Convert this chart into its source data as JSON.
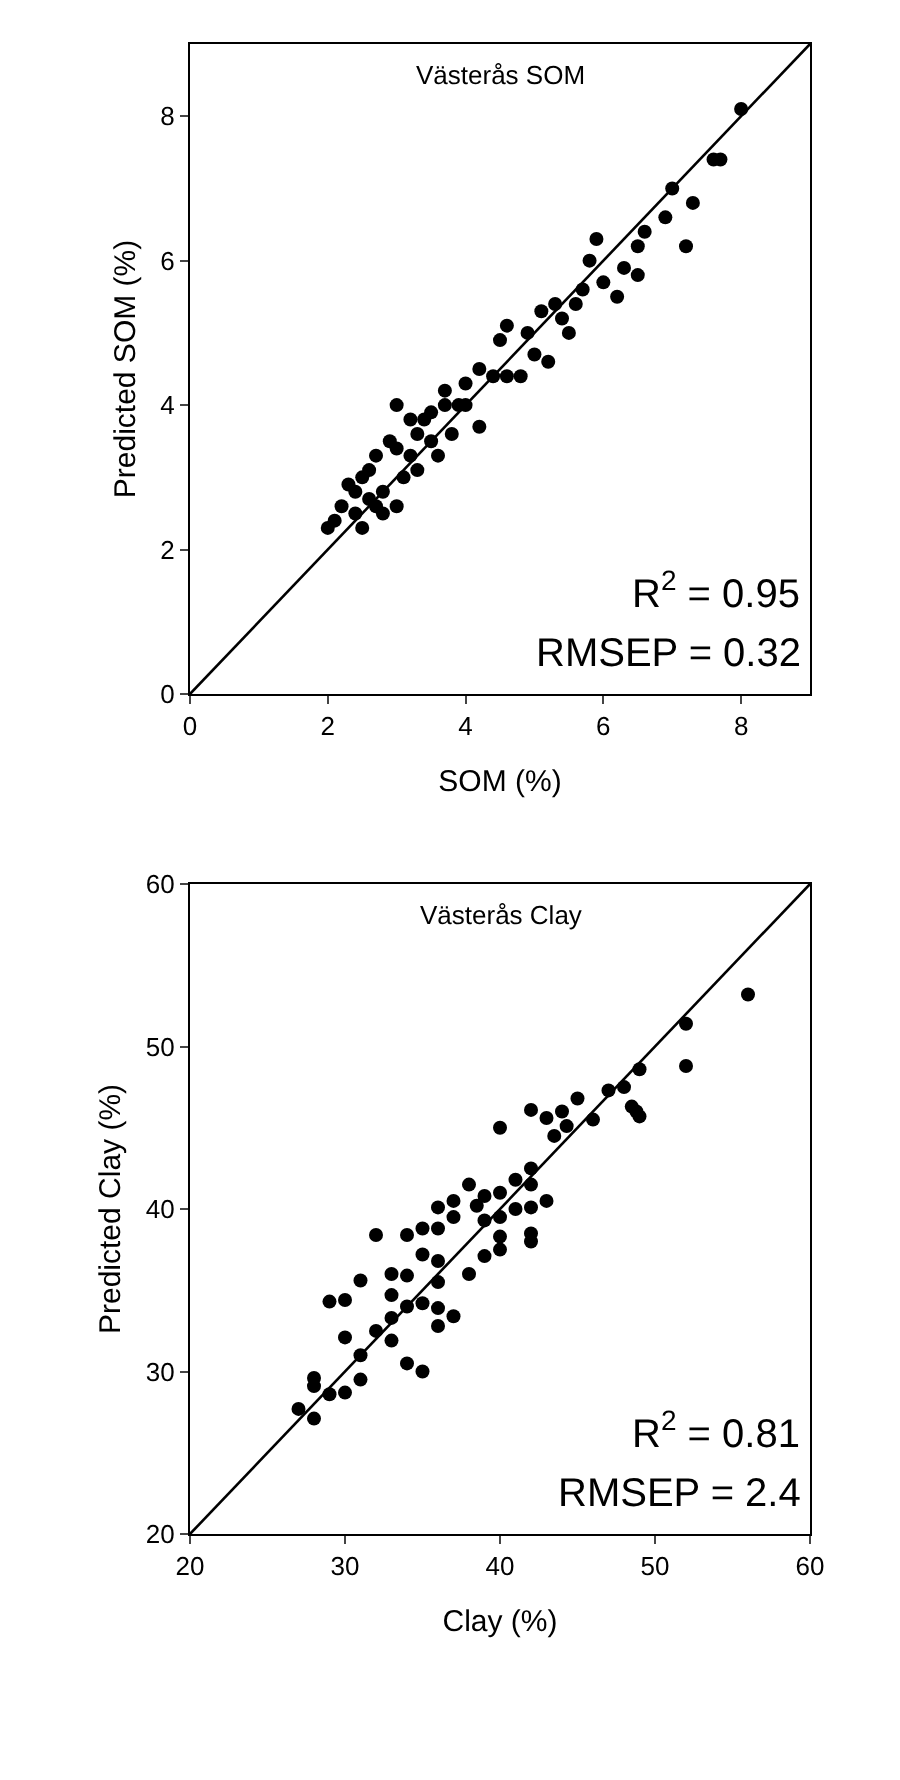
{
  "chart_data": [
    {
      "type": "scatter",
      "xlabel": "SOM (%)",
      "ylabel": "Predicted SOM (%)",
      "xlim": [
        0,
        9
      ],
      "ylim": [
        0,
        9
      ],
      "xticks": [
        0,
        2,
        4,
        6,
        8
      ],
      "yticks": [
        0,
        2,
        4,
        6,
        8
      ],
      "grid": false,
      "annotations": [
        "Västerås SOM",
        "R$^{2}$ = 0.95",
        "RMSEP = 0.32"
      ],
      "series": [
        {
          "color": "#000000",
          "x": [
            8.0,
            7.7,
            7.6,
            7.0,
            7.3,
            6.9,
            7.2,
            6.6,
            6.5,
            6.3,
            6.5,
            5.9,
            5.8,
            5.7,
            6.0,
            6.2,
            5.6,
            5.3,
            5.5,
            5.1,
            4.9,
            5.0,
            4.6,
            4.5,
            5.2,
            4.2,
            4.4,
            4.0,
            4.6,
            3.7,
            3.9,
            3.7,
            3.8,
            4.2,
            3.5,
            3.4,
            3.5,
            3.3,
            3.0,
            3.0,
            2.9,
            2.7,
            3.2,
            2.6,
            2.5,
            2.8,
            3.1,
            2.6,
            2.3,
            2.4,
            2.2,
            2.5,
            2.1,
            2.0,
            2.8,
            3.0,
            2.4,
            2.7,
            3.3,
            3.6,
            4.0,
            3.2,
            4.8,
            5.4
          ],
          "values": [
            8.1,
            7.4,
            7.4,
            7.0,
            6.8,
            6.6,
            6.2,
            6.4,
            6.2,
            5.9,
            5.8,
            6.3,
            6.0,
            5.6,
            5.7,
            5.5,
            5.4,
            5.4,
            5.0,
            5.3,
            5.0,
            4.7,
            5.1,
            4.9,
            4.6,
            4.5,
            4.4,
            4.3,
            4.4,
            4.2,
            4.0,
            4.0,
            3.6,
            3.7,
            3.9,
            3.8,
            3.5,
            3.6,
            4.0,
            3.4,
            3.5,
            3.3,
            3.3,
            3.1,
            3.0,
            2.8,
            3.0,
            2.7,
            2.9,
            2.5,
            2.6,
            2.3,
            2.4,
            2.3,
            2.5,
            2.6,
            2.8,
            2.6,
            3.1,
            3.3,
            4.0,
            3.8,
            4.4,
            5.2
          ]
        },
        {
          "type": "line",
          "color": "#000000",
          "marker": "none",
          "x": [
            0,
            9
          ],
          "values": [
            0,
            9
          ]
        }
      ]
    },
    {
      "type": "scatter",
      "xlabel": "Clay (%)",
      "ylabel": "Predicted Clay (%)",
      "xlim": [
        20,
        60
      ],
      "ylim": [
        20,
        60
      ],
      "xticks": [
        20,
        30,
        40,
        50,
        60
      ],
      "yticks": [
        20,
        30,
        40,
        50,
        60
      ],
      "grid": false,
      "annotations": [
        "Västerås Clay",
        "R$^{2}$ = 0.81",
        "RMSEP = 2.4"
      ],
      "series": [
        {
          "color": "#000000",
          "x": [
            56,
            52,
            52,
            49,
            48,
            48.5,
            49,
            48.8,
            47,
            46,
            45,
            44,
            43,
            44.3,
            42,
            43.5,
            40,
            42,
            41,
            40,
            39,
            38,
            38.5,
            42,
            43,
            42,
            42,
            42,
            40,
            40,
            37,
            36,
            37,
            36,
            35,
            34,
            35,
            36,
            36,
            34,
            33,
            32,
            31,
            33,
            34,
            35,
            36,
            33,
            32,
            30,
            29,
            30,
            31,
            33,
            34,
            35,
            31,
            29,
            28,
            28,
            27,
            28,
            30,
            36,
            37,
            38,
            39,
            40,
            41,
            39
          ],
          "values": [
            53.2,
            51.4,
            48.8,
            48.6,
            47.5,
            46.3,
            45.7,
            46.0,
            47.3,
            45.5,
            46.8,
            46.0,
            45.6,
            45.1,
            46.1,
            44.5,
            45.0,
            42.5,
            41.8,
            41.0,
            40.8,
            41.5,
            40.2,
            41.5,
            40.5,
            40.1,
            38.5,
            38.0,
            38.3,
            37.5,
            40.5,
            40.1,
            39.5,
            38.8,
            38.8,
            38.4,
            37.2,
            36.8,
            35.5,
            35.9,
            36.0,
            38.4,
            35.6,
            34.7,
            34.0,
            34.2,
            33.9,
            33.3,
            32.5,
            34.4,
            34.3,
            32.1,
            31.0,
            31.9,
            30.5,
            30.0,
            29.5,
            28.6,
            29.1,
            29.6,
            27.7,
            27.1,
            28.7,
            32.8,
            33.4,
            36.0,
            37.1,
            39.5,
            40.0,
            39.3
          ]
        },
        {
          "type": "line",
          "color": "#000000",
          "marker": "none",
          "x": [
            20,
            60
          ],
          "values": [
            20,
            60
          ]
        }
      ]
    }
  ]
}
